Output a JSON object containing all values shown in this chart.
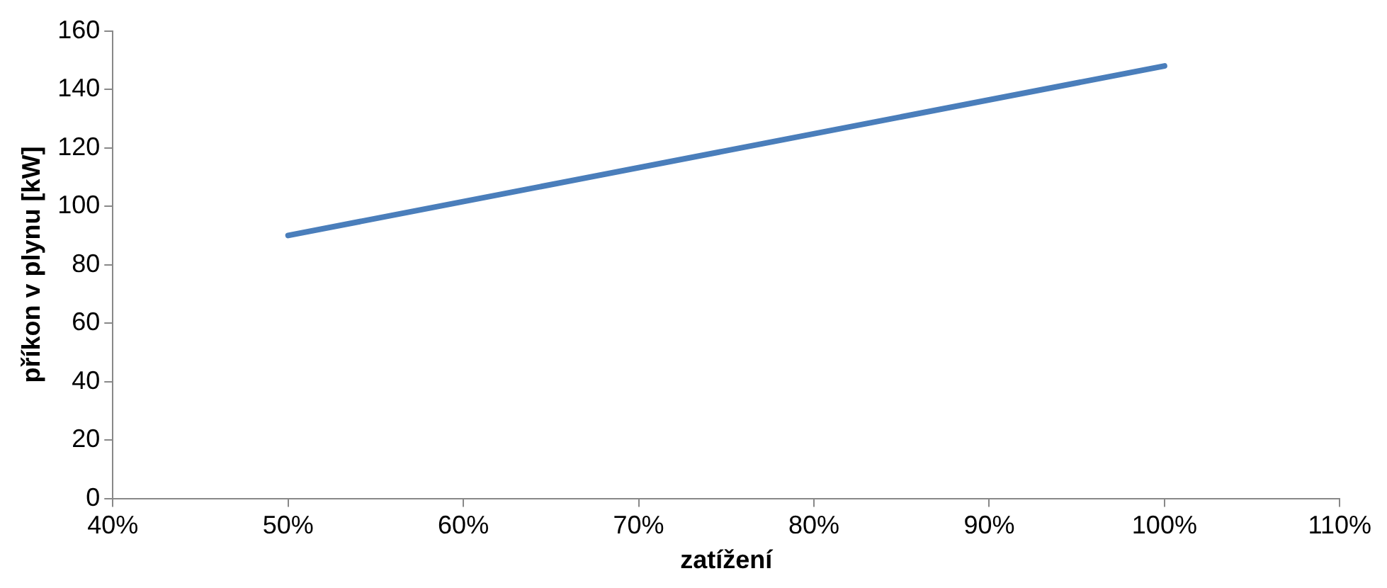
{
  "chart_data": {
    "type": "line",
    "xlabel": "zatížení",
    "ylabel": "příkon v plynu [kW]",
    "x": [
      50,
      100
    ],
    "series": [
      {
        "color": "#4a7ebb",
        "values": [
          90,
          148
        ]
      }
    ],
    "xlim": [
      40,
      110
    ],
    "xticks": [
      {
        "value": 40,
        "label": "40%"
      },
      {
        "value": 50,
        "label": "50%"
      },
      {
        "value": 60,
        "label": "60%"
      },
      {
        "value": 70,
        "label": "70%"
      },
      {
        "value": 80,
        "label": "80%"
      },
      {
        "value": 90,
        "label": "90%"
      },
      {
        "value": 100,
        "label": "100%"
      },
      {
        "value": 110,
        "label": "110%"
      }
    ],
    "ylim": [
      0,
      160
    ],
    "yticks": [
      0,
      20,
      40,
      60,
      80,
      100,
      120,
      140,
      160
    ],
    "grid": false,
    "legend": false,
    "marker": "none",
    "line_style": "solid"
  }
}
